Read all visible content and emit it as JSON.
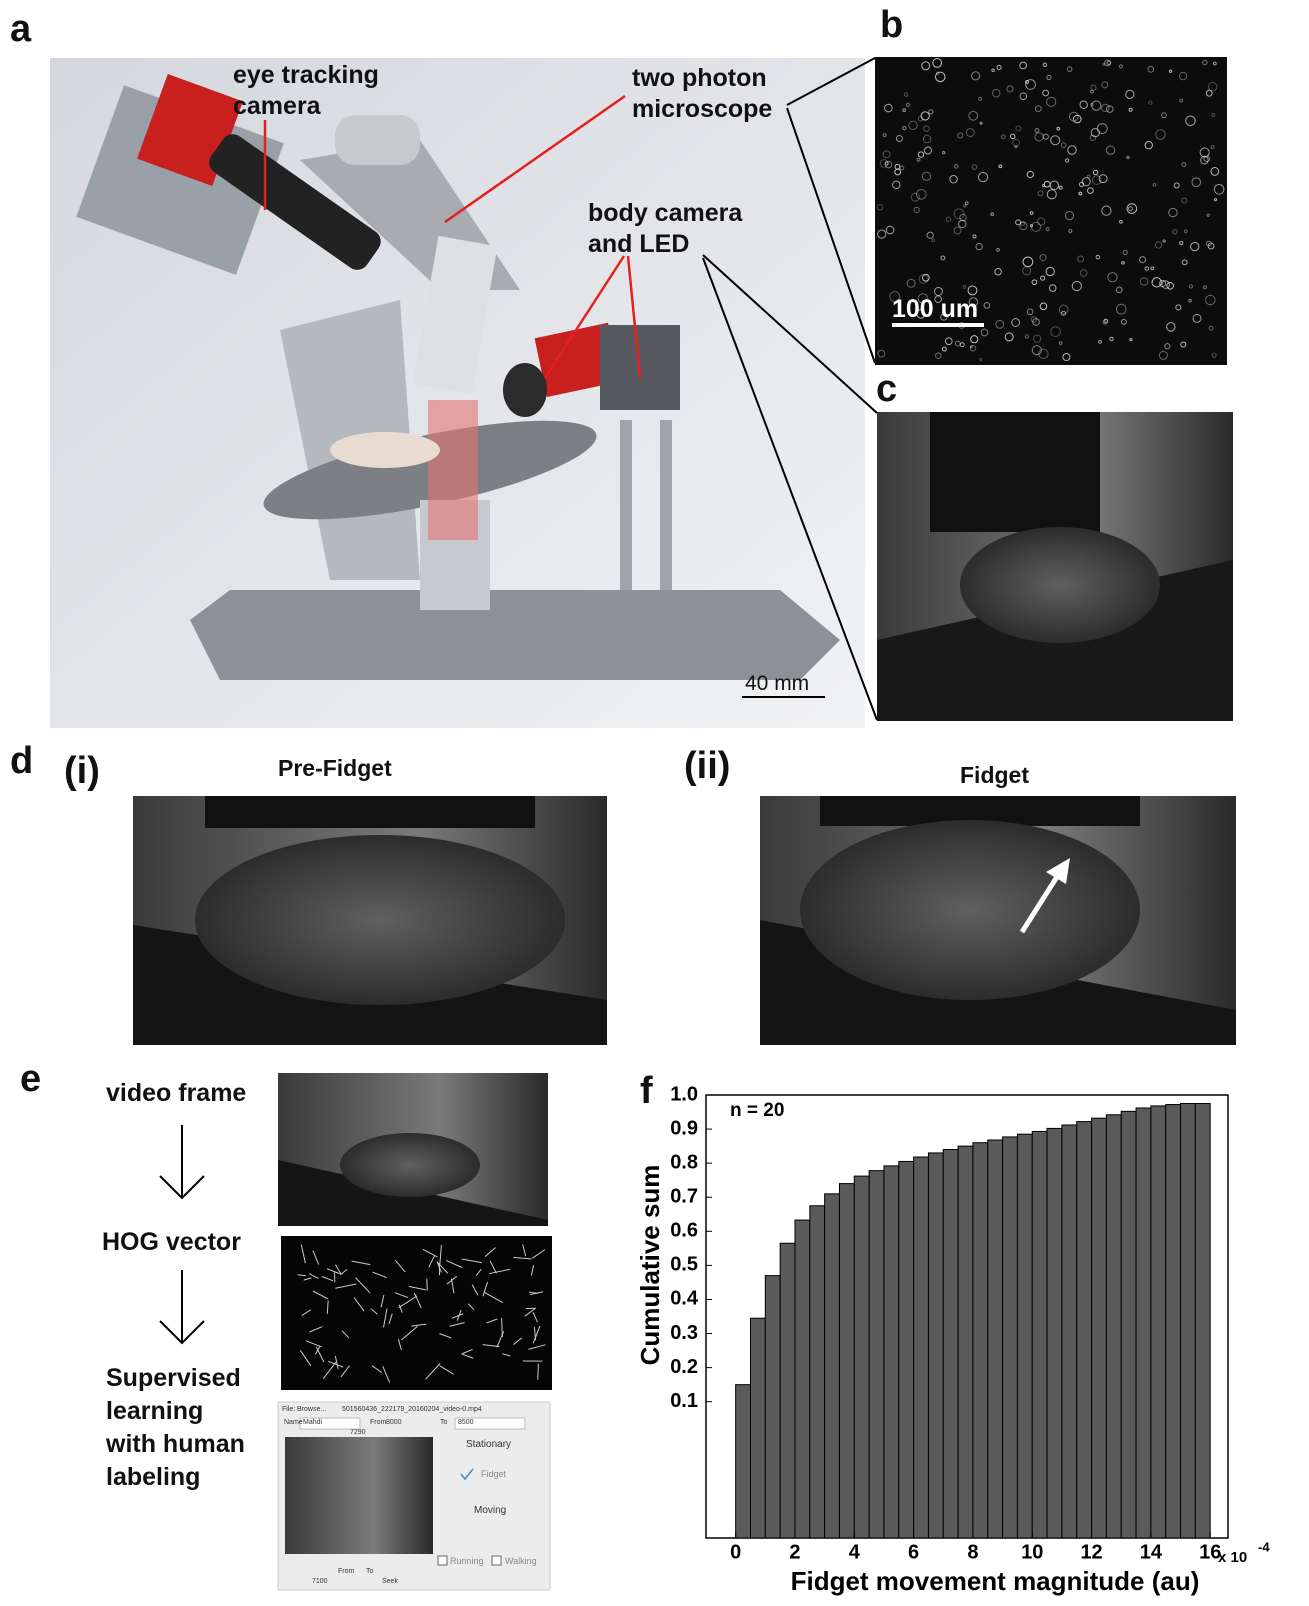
{
  "panel_labels": [
    "a",
    "b",
    "c",
    "d",
    "e",
    "f"
  ],
  "panel_a": {
    "eye_camera": "eye tracking camera",
    "microscope": "two photon microscope",
    "body_camera": "body camera and LED",
    "scale_bar": "40 mm"
  },
  "panel_b": {
    "scale_bar": "100 um"
  },
  "panel_d": {
    "i": {
      "label": "(i)",
      "title": "Pre-Fidget"
    },
    "ii": {
      "label": "(ii)",
      "title": "Fidget"
    }
  },
  "panel_e": {
    "steps": [
      "video frame",
      "HOG vector",
      "Supervised learning with human labeling"
    ],
    "gui": {
      "file_label": "File:",
      "browse": "Browse...",
      "filename": "501560436_222179_20160204_video-0.mp4",
      "name_label": "Name",
      "name": "Mahdi",
      "from_label": "From",
      "from": "8000",
      "to_label": "To",
      "to": "8500",
      "frame": "7290",
      "stationary": "Stationary",
      "fidget": "Fidget",
      "moving": "Moving",
      "running": "Running",
      "walking": "Walking",
      "from_button": "From",
      "to_button": "To",
      "seek_value": "7100",
      "seek": "Seek"
    }
  },
  "chart_data": {
    "type": "histogram",
    "annotation": "n = 20",
    "xlabel": "Fidget movement magnitude (au)",
    "ylabel": "Cumulative sum",
    "x_multiplier": "x 10",
    "x_multiplier_exponent": "-4",
    "bins": [
      0,
      0.5,
      1,
      1.5,
      2,
      2.5,
      3,
      3.5,
      4,
      4.5,
      5,
      5.5,
      6,
      6.5,
      7,
      7.5,
      8,
      8.5,
      9,
      9.5,
      10,
      10.5,
      11,
      11.5,
      12,
      12.5,
      13,
      13.5,
      14,
      14.5,
      15,
      15.5,
      16
    ],
    "values": [
      0.15,
      0.345,
      0.47,
      0.565,
      0.633,
      0.675,
      0.71,
      0.74,
      0.762,
      0.778,
      0.792,
      0.805,
      0.818,
      0.83,
      0.84,
      0.85,
      0.86,
      0.868,
      0.877,
      0.885,
      0.893,
      0.902,
      0.912,
      0.922,
      0.932,
      0.942,
      0.952,
      0.962,
      0.968,
      0.972,
      0.975,
      0.975
    ],
    "color": "#5a5a5a",
    "xlim": [
      -1,
      16.6
    ],
    "xticks": [
      0,
      2,
      4,
      6,
      8,
      10,
      12,
      14,
      16
    ],
    "ylim": [
      -0.3,
      1.0
    ],
    "yticks": [
      0.1,
      0.2,
      0.3,
      0.4,
      0.5,
      0.6,
      0.7,
      0.8,
      0.9,
      {
        "value": 1,
        "label": "1.0"
      }
    ]
  }
}
